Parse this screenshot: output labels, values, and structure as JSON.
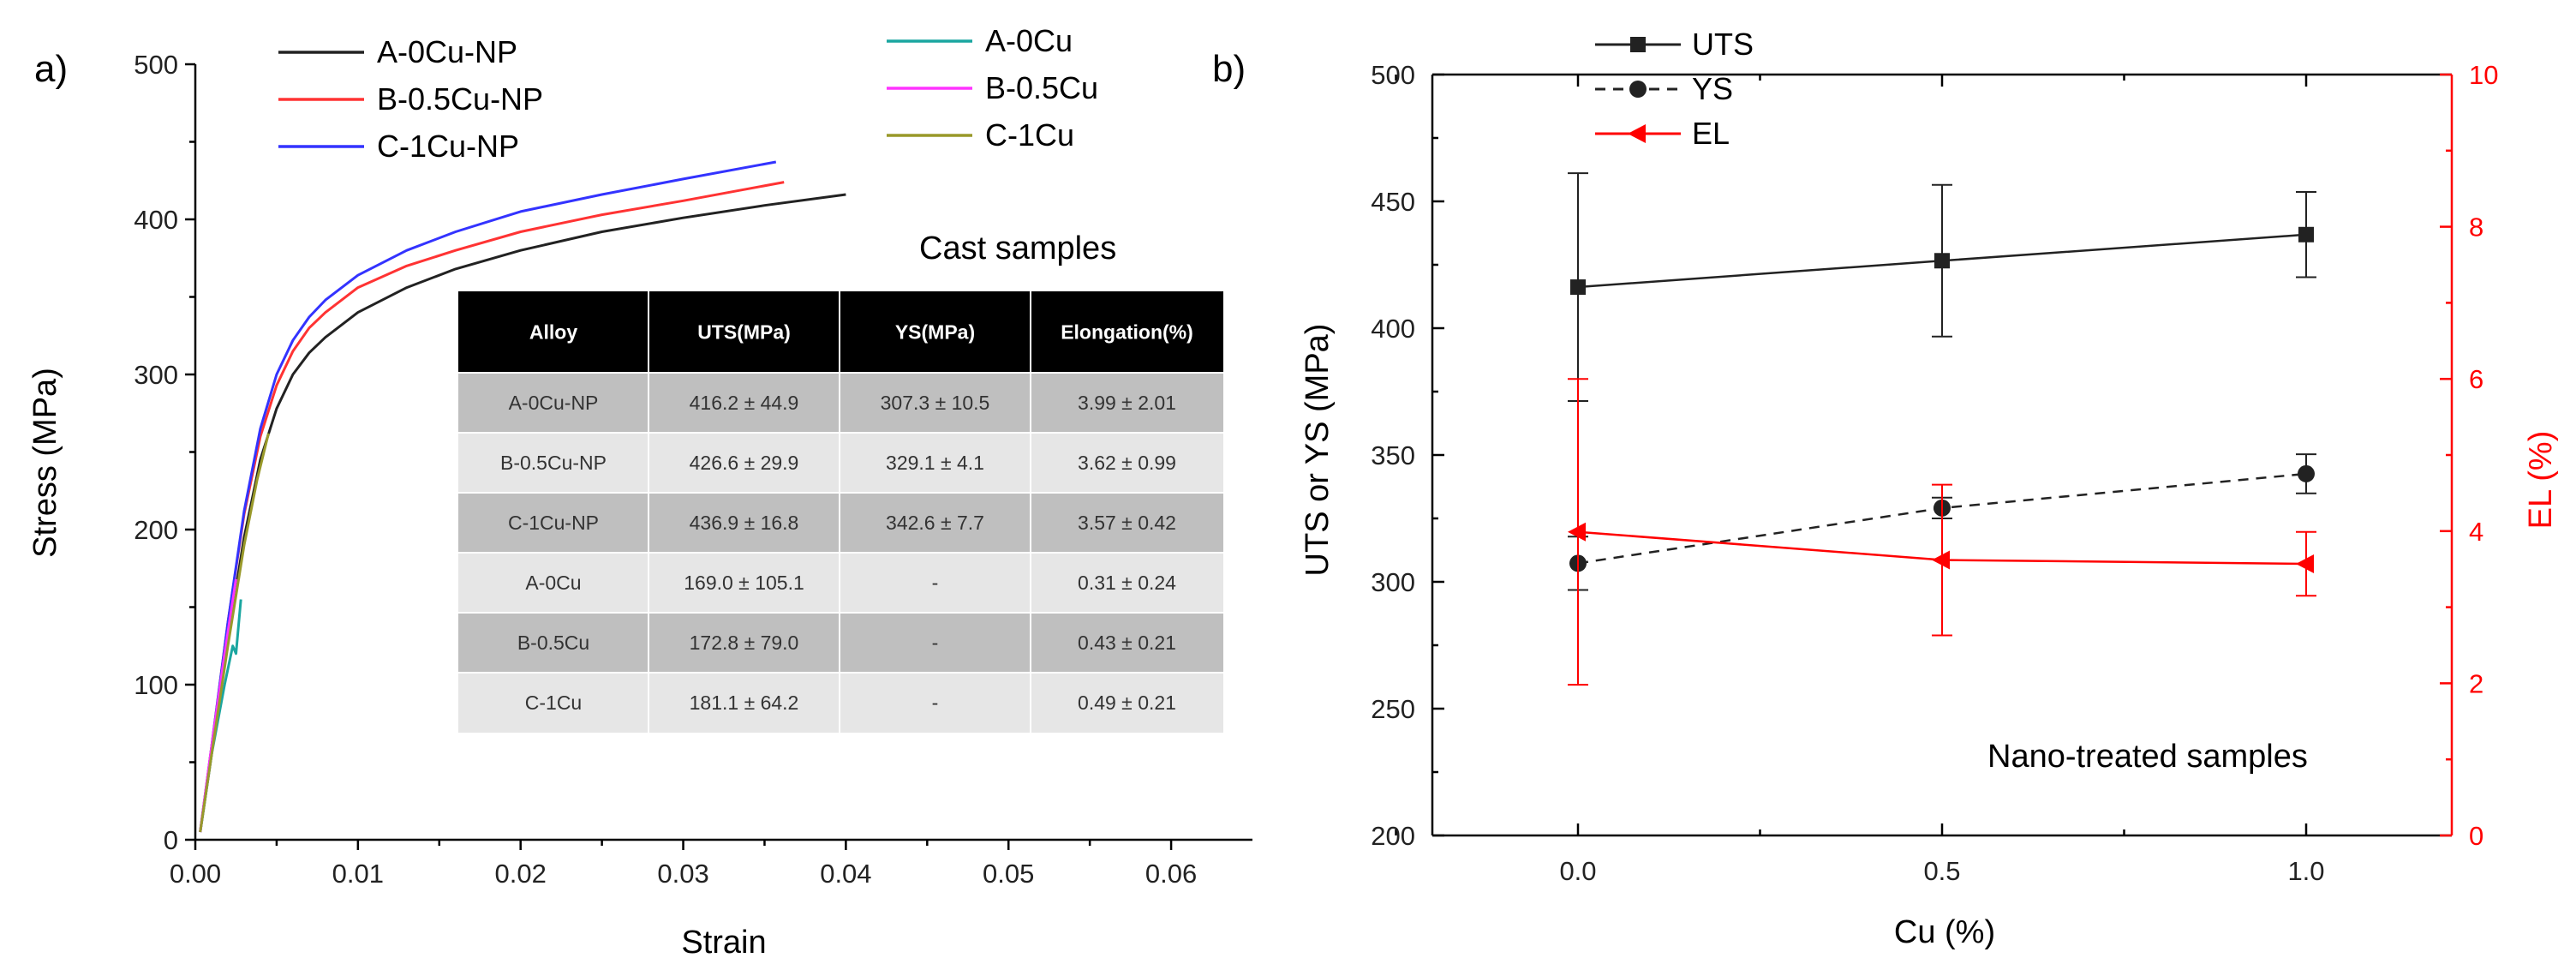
{
  "chart_data": [
    {
      "type": "line",
      "panel_label": "a)",
      "xlabel": "Strain",
      "ylabel": "Stress (MPa)",
      "xlim": [
        0,
        0.065
      ],
      "ylim": [
        0,
        500
      ],
      "xticks": [
        0.0,
        0.01,
        0.02,
        0.03,
        0.04,
        0.05,
        0.06
      ],
      "xtick_labels": [
        "0.00",
        "0.01",
        "0.02",
        "0.03",
        "0.04",
        "0.05",
        "0.06"
      ],
      "yticks": [
        0,
        100,
        200,
        300,
        400,
        500
      ],
      "ytick_labels": [
        "0",
        "100",
        "200",
        "300",
        "400",
        "500"
      ],
      "series": [
        {
          "name": "A-0Cu-NP",
          "color": "#222222",
          "x": [
            0.0003,
            0.001,
            0.002,
            0.003,
            0.004,
            0.005,
            0.006,
            0.007,
            0.008,
            0.01,
            0.013,
            0.016,
            0.02,
            0.025,
            0.03,
            0.035,
            0.04
          ],
          "y": [
            5,
            55,
            130,
            195,
            245,
            278,
            300,
            314,
            324,
            340,
            356,
            368,
            380,
            392,
            401,
            409,
            416
          ]
        },
        {
          "name": "B-0.5Cu-NP",
          "color": "#ff3333",
          "x": [
            0.0003,
            0.001,
            0.002,
            0.003,
            0.004,
            0.005,
            0.006,
            0.007,
            0.008,
            0.01,
            0.013,
            0.016,
            0.02,
            0.025,
            0.03,
            0.0362
          ],
          "y": [
            5,
            60,
            140,
            210,
            260,
            293,
            315,
            330,
            340,
            356,
            370,
            380,
            392,
            403,
            412,
            424
          ]
        },
        {
          "name": "C-1Cu-NP",
          "color": "#3333ff",
          "x": [
            0.0003,
            0.001,
            0.002,
            0.003,
            0.004,
            0.005,
            0.006,
            0.007,
            0.008,
            0.01,
            0.013,
            0.016,
            0.02,
            0.025,
            0.03,
            0.0357
          ],
          "y": [
            5,
            60,
            140,
            212,
            265,
            300,
            322,
            337,
            348,
            364,
            380,
            392,
            405,
            416,
            426,
            437
          ]
        },
        {
          "name": "A-0Cu",
          "color": "#1aa6a0",
          "x": [
            0.0003,
            0.001,
            0.0018,
            0.0023,
            0.0025,
            0.0028
          ],
          "y": [
            5,
            55,
            100,
            125,
            120,
            155
          ]
        },
        {
          "name": "B-0.5Cu",
          "color": "#ff33ff",
          "x": [
            0.0003,
            0.001,
            0.0018,
            0.0025
          ],
          "y": [
            5,
            60,
            120,
            168
          ]
        },
        {
          "name": "C-1Cu",
          "color": "#99992a",
          "x": [
            0.0003,
            0.001,
            0.002,
            0.003,
            0.0038,
            0.0045
          ],
          "y": [
            5,
            55,
            125,
            190,
            232,
            262
          ]
        }
      ],
      "legend": {
        "placement": "top",
        "entries": [
          "A-0Cu-NP",
          "B-0.5Cu-NP",
          "C-1Cu-NP",
          "A-0Cu",
          "B-0.5Cu",
          "C-1Cu"
        ]
      },
      "inset_title": "Cast samples",
      "table": {
        "type": "table",
        "columns": [
          "Alloy",
          "UTS(MPa)",
          "YS(MPa)",
          "Elongation(%)"
        ],
        "rows": [
          [
            "A-0Cu-NP",
            "416.2 ± 44.9",
            "307.3 ± 10.5",
            "3.99 ± 2.01"
          ],
          [
            "B-0.5Cu-NP",
            "426.6 ± 29.9",
            "329.1 ± 4.1",
            "3.62 ± 0.99"
          ],
          [
            "C-1Cu-NP",
            "436.9 ± 16.8",
            "342.6 ± 7.7",
            "3.57 ± 0.42"
          ],
          [
            "A-0Cu",
            "169.0 ± 105.1",
            "-",
            "0.31 ± 0.24"
          ],
          [
            "B-0.5Cu",
            "172.8 ± 79.0",
            "-",
            "0.43 ± 0.21"
          ],
          [
            "C-1Cu",
            "181.1 ± 64.2",
            "-",
            "0.49 ± 0.21"
          ]
        ]
      }
    },
    {
      "type": "line",
      "panel_label": "b)",
      "xlabel": "Cu (%)",
      "ylabel": "UTS or YS (MPa)",
      "y2label": "EL (%)",
      "xlim": [
        -0.2,
        1.2
      ],
      "ylim": [
        200,
        500
      ],
      "y2lim": [
        0,
        10
      ],
      "xticks": [
        0.0,
        0.5,
        1.0
      ],
      "xtick_labels": [
        "0.0",
        "0.5",
        "1.0"
      ],
      "yticks": [
        200,
        250,
        300,
        350,
        400,
        450,
        500
      ],
      "ytick_labels": [
        "200",
        "250",
        "300",
        "350",
        "400",
        "450",
        "500"
      ],
      "y2ticks": [
        0,
        2,
        4,
        6,
        8,
        10
      ],
      "y2tick_labels": [
        "0",
        "2",
        "4",
        "6",
        "8",
        "10"
      ],
      "series": [
        {
          "name": "UTS",
          "axis": "left",
          "color": "#222222",
          "marker": "square",
          "dash": "solid",
          "x": [
            0.0,
            0.5,
            1.0
          ],
          "y": [
            416.2,
            426.6,
            436.9
          ],
          "err": [
            44.9,
            29.9,
            16.8
          ]
        },
        {
          "name": "YS",
          "axis": "left",
          "color": "#222222",
          "marker": "circle",
          "dash": "dashed",
          "x": [
            0.0,
            0.5,
            1.0
          ],
          "y": [
            307.3,
            329.1,
            342.6
          ],
          "err": [
            10.5,
            4.1,
            7.7
          ]
        },
        {
          "name": "EL",
          "axis": "right",
          "color": "#ff0000",
          "marker": "triangle-left",
          "dash": "solid",
          "x": [
            0.0,
            0.5,
            1.0
          ],
          "y": [
            3.99,
            3.62,
            3.57
          ],
          "err": [
            2.01,
            0.99,
            0.42
          ]
        }
      ],
      "legend": {
        "placement": "top-left",
        "entries": [
          "UTS",
          "YS",
          "EL"
        ]
      },
      "annotation": "Nano-treated samples"
    }
  ]
}
